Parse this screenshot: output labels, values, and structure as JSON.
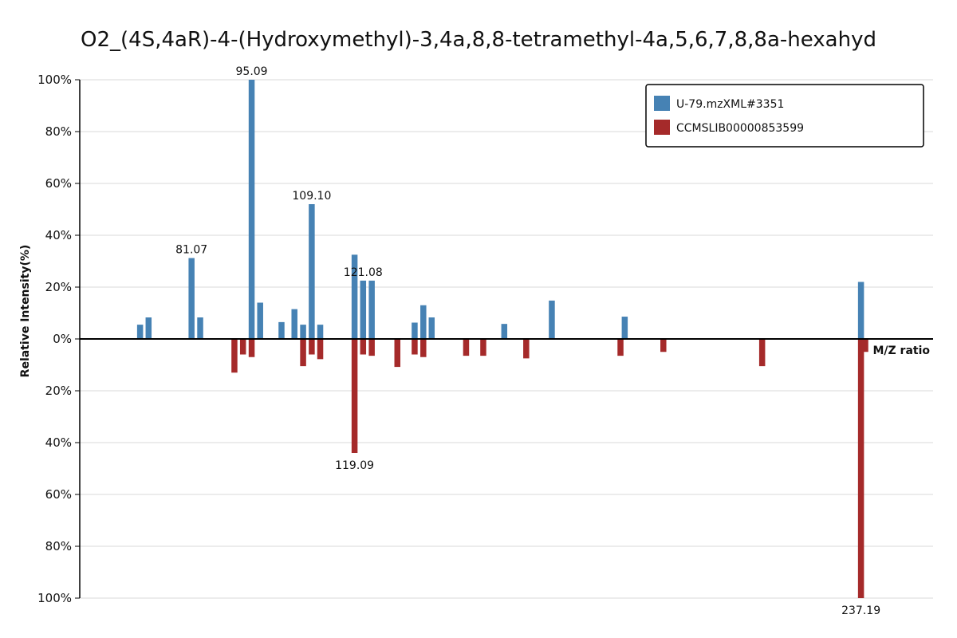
{
  "chart_data": {
    "type": "bar",
    "title": "O2_(4S,4aR)-4-(Hydroxymethyl)-3,4a,8,8-tetramethyl-4a,5,6,7,8,8a-hexahyd",
    "xlabel": "M/Z ratio",
    "ylabel": "Relative Intensity(%)",
    "ylim_top": [
      0,
      100
    ],
    "ylim_bottom": [
      0,
      100
    ],
    "xlim": [
      55,
      254
    ],
    "yticks_top": [
      "0%",
      "20%",
      "40%",
      "60%",
      "80%",
      "100%"
    ],
    "yticks_bottom": [
      "20%",
      "40%",
      "60%",
      "80%",
      "100%"
    ],
    "grid": true,
    "legend_position": "top-right",
    "series": [
      {
        "name": "U-79.mzXML#3351",
        "color": "#4682b4",
        "direction": "up",
        "x": [
          69.07,
          71.05,
          81.07,
          83.09,
          95.09,
          97.07,
          102.05,
          105.07,
          107.09,
          109.1,
          111.08,
          119.09,
          121.08,
          123.1,
          133.1,
          135.12,
          137.07,
          154.0,
          165.09,
          182.09,
          237.19
        ],
        "values": [
          5.5,
          8.3,
          31.2,
          8.3,
          100,
          14.0,
          6.5,
          11.5,
          5.5,
          52.0,
          5.5,
          32.5,
          22.5,
          22.5,
          6.3,
          13.0,
          8.3,
          5.8,
          14.8,
          8.6,
          22.0
        ]
      },
      {
        "name": "CCMSLIB00000853599",
        "color": "#a52a2a",
        "direction": "down",
        "x": [
          91.07,
          93.07,
          95.09,
          107.09,
          109.1,
          111.08,
          119.09,
          121.08,
          123.1,
          129.07,
          133.1,
          135.12,
          145.1,
          149.1,
          159.12,
          181.1,
          191.1,
          214.14,
          237.19,
          238.19
        ],
        "values": [
          13.0,
          6.0,
          7.0,
          10.5,
          6.0,
          7.8,
          44.0,
          6.0,
          6.5,
          10.8,
          6.0,
          7.0,
          6.5,
          6.5,
          7.5,
          6.5,
          5.0,
          10.5,
          100,
          5.0
        ]
      }
    ],
    "peak_labels": [
      {
        "mz": 81.07,
        "series": "top",
        "label": "81.07"
      },
      {
        "mz": 95.09,
        "series": "top",
        "label": "95.09"
      },
      {
        "mz": 109.1,
        "series": "top",
        "label": "109.10"
      },
      {
        "mz": 121.08,
        "series": "top",
        "label": "121.08"
      },
      {
        "mz": 119.09,
        "series": "bottom",
        "label": "119.09"
      },
      {
        "mz": 237.19,
        "series": "bottom",
        "label": "237.19"
      }
    ]
  }
}
